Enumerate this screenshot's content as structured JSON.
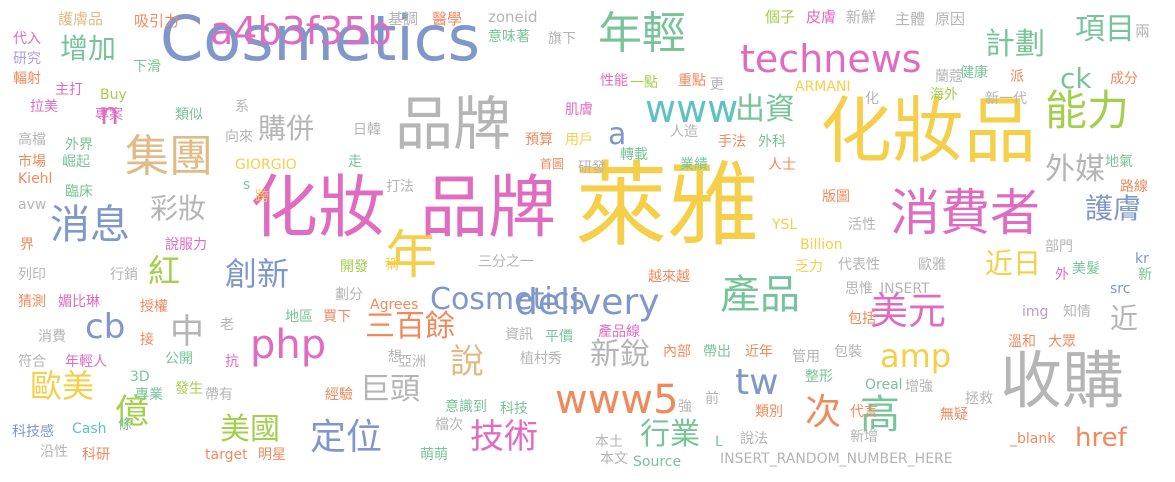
{
  "palette": {
    "yellow": "#f5cf4a",
    "blue": "#7f97c9",
    "pink": "#e06cc2",
    "green": "#78c49a",
    "orange": "#f08a5d",
    "gray": "#b5b5b5",
    "teal": "#5fc1c4",
    "lime": "#a4cf4c",
    "tan": "#e0bb86",
    "purple": "#b59ad9",
    "red": "#e86a6a"
  },
  "words": [
    {
      "text": "萊雅",
      "color": "#f5cf4a"
    },
    {
      "text": "Cosmetics",
      "color": "#7f97c9"
    },
    {
      "text": "化妝品",
      "color": "#f5cf4a"
    },
    {
      "text": "化妝",
      "color": "#e06cc2"
    },
    {
      "text": "品牌",
      "color": "#e06cc2"
    },
    {
      "text": "品牌",
      "color": "#b5b5b5"
    },
    {
      "text": "收購",
      "color": "#b5b5b5"
    },
    {
      "text": "消費者",
      "color": "#e06cc2"
    },
    {
      "text": "年",
      "color": "#f5cf4a"
    },
    {
      "text": "a4b3f35b",
      "color": "#e06cc2"
    },
    {
      "text": "年輕",
      "color": "#78c49a"
    },
    {
      "text": "technews",
      "color": "#e06cc2"
    },
    {
      "text": "集團",
      "color": "#e0bb86"
    },
    {
      "text": "www",
      "color": "#5fc1c4"
    },
    {
      "text": "能力",
      "color": "#a4cf4c"
    },
    {
      "text": "消息",
      "color": "#7f97c9"
    },
    {
      "text": "delivery",
      "color": "#7f97c9"
    },
    {
      "text": "產品",
      "color": "#78c49a"
    },
    {
      "text": "php",
      "color": "#e06cc2"
    },
    {
      "text": "amp",
      "color": "#f5cf4a"
    },
    {
      "text": "www5",
      "color": "#f08a5d"
    },
    {
      "text": "技術",
      "color": "#e06cc2"
    },
    {
      "text": "創新",
      "color": "#7f97c9"
    },
    {
      "text": "紅",
      "color": "#a4cf4c"
    },
    {
      "text": "歐美",
      "color": "#f5cf4a"
    },
    {
      "text": "定位",
      "color": "#7f97c9"
    },
    {
      "text": "億",
      "color": "#a4cf4c"
    },
    {
      "text": "cb",
      "color": "#7f97c9"
    },
    {
      "text": "美元",
      "color": "#e06cc2"
    },
    {
      "text": "說",
      "color": "#e0bb86"
    },
    {
      "text": "高",
      "color": "#78c49a"
    },
    {
      "text": "次",
      "color": "#f08a5d"
    },
    {
      "text": "tw",
      "color": "#7f97c9"
    },
    {
      "text": "中",
      "color": "#b5b5b5"
    },
    {
      "text": "增加",
      "color": "#78c49a"
    },
    {
      "text": "出資",
      "color": "#78c49a"
    },
    {
      "text": "外媒",
      "color": "#b5b5b5"
    },
    {
      "text": "計劃",
      "color": "#78c49a"
    },
    {
      "text": "項目",
      "color": "#78c49a"
    },
    {
      "text": "ck",
      "color": "#78c49a"
    },
    {
      "text": "護膚",
      "color": "#7f97c9"
    },
    {
      "text": "近日",
      "color": "#f5cf4a"
    },
    {
      "text": "彩妝",
      "color": "#b5b5b5"
    },
    {
      "text": "購併",
      "color": "#b5b5b5"
    },
    {
      "text": "三百餘",
      "color": "#f08a5d"
    },
    {
      "text": "巨頭",
      "color": "#b5b5b5"
    },
    {
      "text": "新銳",
      "color": "#b5b5b5"
    },
    {
      "text": "美國",
      "color": "#a4cf4c"
    },
    {
      "text": "行業",
      "color": "#78c49a"
    },
    {
      "text": "href",
      "color": "#f08a5d"
    },
    {
      "text": "近",
      "color": "#b5b5b5"
    },
    {
      "text": "n",
      "color": "#e06cc2"
    },
    {
      "text": "a",
      "color": "#7f97c9"
    },
    {
      "text": "Cosmetics",
      "color": "#7f97c9"
    },
    {
      "text": "護膚品",
      "color": "#e0bb86"
    },
    {
      "text": "吸引力",
      "color": "#f08a5d"
    },
    {
      "text": "基調",
      "color": "#b5b5b5"
    },
    {
      "text": "醫學",
      "color": "#f08a5d"
    },
    {
      "text": "zoneid",
      "color": "#b5b5b5"
    },
    {
      "text": "個子",
      "color": "#a4cf4c"
    },
    {
      "text": "皮膚",
      "color": "#e06cc2"
    },
    {
      "text": "新鮮",
      "color": "#b5b5b5"
    },
    {
      "text": "主體",
      "color": "#b5b5b5"
    },
    {
      "text": "原因",
      "color": "#b5b5b5"
    },
    {
      "text": "兩",
      "color": "#b5b5b5"
    },
    {
      "text": "代入",
      "color": "#e06cc2"
    },
    {
      "text": "研究",
      "color": "#b59ad9"
    },
    {
      "text": "輻射",
      "color": "#f08a5d"
    },
    {
      "text": "意味著",
      "color": "#78c49a"
    },
    {
      "text": "旗下",
      "color": "#b5b5b5"
    },
    {
      "text": "下滑",
      "color": "#78c49a"
    },
    {
      "text": "主打",
      "color": "#e06cc2"
    },
    {
      "text": "Buy",
      "color": "#a4cf4c"
    },
    {
      "text": "性能",
      "color": "#e06cc2"
    },
    {
      "text": "一點",
      "color": "#a4cf4c"
    },
    {
      "text": "重點",
      "color": "#f08a5d"
    },
    {
      "text": "更",
      "color": "#b5b5b5"
    },
    {
      "text": "ARMANI",
      "color": "#f5cf4a"
    },
    {
      "text": "健康",
      "color": "#78c49a"
    },
    {
      "text": "成分",
      "color": "#f08a5d"
    },
    {
      "text": "蘭蔻",
      "color": "#b5b5b5"
    },
    {
      "text": "派",
      "color": "#f08a5d"
    },
    {
      "text": "海外",
      "color": "#a4cf4c"
    },
    {
      "text": "新一代",
      "color": "#b5b5b5"
    },
    {
      "text": "化",
      "color": "#b5b5b5"
    },
    {
      "text": "拉美",
      "color": "#e06cc2"
    },
    {
      "text": "專案",
      "color": "#e06cc2"
    },
    {
      "text": "類似",
      "color": "#78c49a"
    },
    {
      "text": "系",
      "color": "#b5b5b5"
    },
    {
      "text": "肌膚",
      "color": "#e06cc2"
    },
    {
      "text": "人造",
      "color": "#b5b5b5"
    },
    {
      "text": "高檔",
      "color": "#b5b5b5"
    },
    {
      "text": "外界",
      "color": "#78c49a"
    },
    {
      "text": "向來",
      "color": "#b5b5b5"
    },
    {
      "text": "日韓",
      "color": "#b5b5b5"
    },
    {
      "text": "預算",
      "color": "#f08a5d"
    },
    {
      "text": "用戶",
      "color": "#f5cf4a"
    },
    {
      "text": "手法",
      "color": "#f08a5d"
    },
    {
      "text": "外科",
      "color": "#78c49a"
    },
    {
      "text": "市場",
      "color": "#f08a5d"
    },
    {
      "text": "崛起",
      "color": "#78c49a"
    },
    {
      "text": "GIORGIO",
      "color": "#f5cf4a"
    },
    {
      "text": "首圖",
      "color": "#f08a5d"
    },
    {
      "text": "研發",
      "color": "#b5b5b5"
    },
    {
      "text": "轉載",
      "color": "#78c49a"
    },
    {
      "text": "業績",
      "color": "#78c49a"
    },
    {
      "text": "人士",
      "color": "#f08a5d"
    },
    {
      "text": "地氣",
      "color": "#78c49a"
    },
    {
      "text": "Kiehl",
      "color": "#f08a5d"
    },
    {
      "text": "走",
      "color": "#78c49a"
    },
    {
      "text": "s",
      "color": "#78c49a"
    },
    {
      "text": "打法",
      "color": "#b5b5b5"
    },
    {
      "text": "路線",
      "color": "#f08a5d"
    },
    {
      "text": "臨床",
      "color": "#78c49a"
    },
    {
      "text": "avw",
      "color": "#b5b5b5"
    },
    {
      "text": "跨",
      "color": "#f5cf4a"
    },
    {
      "text": "版圖",
      "color": "#f08a5d"
    },
    {
      "text": "界",
      "color": "#f08a5d"
    },
    {
      "text": "說服力",
      "color": "#e06cc2"
    },
    {
      "text": "YSL",
      "color": "#f5cf4a"
    },
    {
      "text": "活性",
      "color": "#b5b5b5"
    },
    {
      "text": "Billion",
      "color": "#f5cf4a"
    },
    {
      "text": "部門",
      "color": "#b5b5b5"
    },
    {
      "text": "列印",
      "color": "#b5b5b5"
    },
    {
      "text": "行銷",
      "color": "#b5b5b5"
    },
    {
      "text": "開發",
      "color": "#a4cf4c"
    },
    {
      "text": "稱",
      "color": "#f5cf4a"
    },
    {
      "text": "三分之一",
      "color": "#b5b5b5"
    },
    {
      "text": "越來越",
      "color": "#f08a5d"
    },
    {
      "text": "乏力",
      "color": "#f5cf4a"
    },
    {
      "text": "代表性",
      "color": "#b5b5b5"
    },
    {
      "text": "歐雅",
      "color": "#b5b5b5"
    },
    {
      "text": "外",
      "color": "#e06cc2"
    },
    {
      "text": "美髮",
      "color": "#78c49a"
    },
    {
      "text": "kr",
      "color": "#7f97c9"
    },
    {
      "text": "新",
      "color": "#78c49a"
    },
    {
      "text": "猜測",
      "color": "#f08a5d"
    },
    {
      "text": "媚比琳",
      "color": "#e06cc2"
    },
    {
      "text": "劃分",
      "color": "#b5b5b5"
    },
    {
      "text": "思惟",
      "color": "#b5b5b5"
    },
    {
      "text": "INSERT",
      "color": "#b5b5b5"
    },
    {
      "text": "src",
      "color": "#7f97c9"
    },
    {
      "text": "授權",
      "color": "#f08a5d"
    },
    {
      "text": "Agrees",
      "color": "#f08a5d"
    },
    {
      "text": "img",
      "color": "#b59ad9"
    },
    {
      "text": "知情",
      "color": "#b5b5b5"
    },
    {
      "text": "地區",
      "color": "#78c49a"
    },
    {
      "text": "買下",
      "color": "#f08a5d"
    },
    {
      "text": "老",
      "color": "#b5b5b5"
    },
    {
      "text": "包括",
      "color": "#f08a5d"
    },
    {
      "text": "消費",
      "color": "#b5b5b5"
    },
    {
      "text": "接",
      "color": "#f08a5d"
    },
    {
      "text": "資訊",
      "color": "#b5b5b5"
    },
    {
      "text": "平價",
      "color": "#78c49a"
    },
    {
      "text": "產品線",
      "color": "#e06cc2"
    },
    {
      "text": "溫和",
      "color": "#f08a5d"
    },
    {
      "text": "符合",
      "color": "#b5b5b5"
    },
    {
      "text": "年輕人",
      "color": "#e06cc2"
    },
    {
      "text": "公開",
      "color": "#78c49a"
    },
    {
      "text": "抗",
      "color": "#e06cc2"
    },
    {
      "text": "想",
      "color": "#b5b5b5"
    },
    {
      "text": "亞洲",
      "color": "#b5b5b5"
    },
    {
      "text": "植村秀",
      "color": "#b5b5b5"
    },
    {
      "text": "內部",
      "color": "#f08a5d"
    },
    {
      "text": "帶出",
      "color": "#78c49a"
    },
    {
      "text": "近年",
      "color": "#f08a5d"
    },
    {
      "text": "管用",
      "color": "#b5b5b5"
    },
    {
      "text": "包裝",
      "color": "#b5b5b5"
    },
    {
      "text": "大眾",
      "color": "#f08a5d"
    },
    {
      "text": "3D",
      "color": "#78c49a"
    },
    {
      "text": "專業",
      "color": "#78c49a"
    },
    {
      "text": "發生",
      "color": "#a4cf4c"
    },
    {
      "text": "帶有",
      "color": "#b5b5b5"
    },
    {
      "text": "整形",
      "color": "#78c49a"
    },
    {
      "text": "Oreal",
      "color": "#78c49a"
    },
    {
      "text": "增強",
      "color": "#b5b5b5"
    },
    {
      "text": "拯救",
      "color": "#b5b5b5"
    },
    {
      "text": "經驗",
      "color": "#f08a5d"
    },
    {
      "text": "意識到",
      "color": "#78c49a"
    },
    {
      "text": "科技",
      "color": "#78c49a"
    },
    {
      "text": "強",
      "color": "#b5b5b5"
    },
    {
      "text": "前",
      "color": "#b5b5b5"
    },
    {
      "text": "類別",
      "color": "#f08a5d"
    },
    {
      "text": "代言",
      "color": "#f08a5d"
    },
    {
      "text": "無疑",
      "color": "#f08a5d"
    },
    {
      "text": "科技感",
      "color": "#7f97c9"
    },
    {
      "text": "Cash",
      "color": "#5fc1c4"
    },
    {
      "text": "條",
      "color": "#78c49a"
    },
    {
      "text": "檔次",
      "color": "#b5b5b5"
    },
    {
      "text": "本土",
      "color": "#b5b5b5"
    },
    {
      "text": "L",
      "color": "#78c49a"
    },
    {
      "text": "說法",
      "color": "#b5b5b5"
    },
    {
      "text": "新增",
      "color": "#b5b5b5"
    },
    {
      "text": "_blank",
      "color": "#f08a5d"
    },
    {
      "text": "沿性",
      "color": "#b5b5b5"
    },
    {
      "text": "科研",
      "color": "#f08a5d"
    },
    {
      "text": "target",
      "color": "#f08a5d"
    },
    {
      "text": "明星",
      "color": "#f08a5d"
    },
    {
      "text": "萌萌",
      "color": "#78c49a"
    },
    {
      "text": "本文",
      "color": "#b5b5b5"
    },
    {
      "text": "Source",
      "color": "#78c49a"
    },
    {
      "text": "INSERT_RANDOM_NUMBER_HERE",
      "color": "#b5b5b5"
    }
  ]
}
